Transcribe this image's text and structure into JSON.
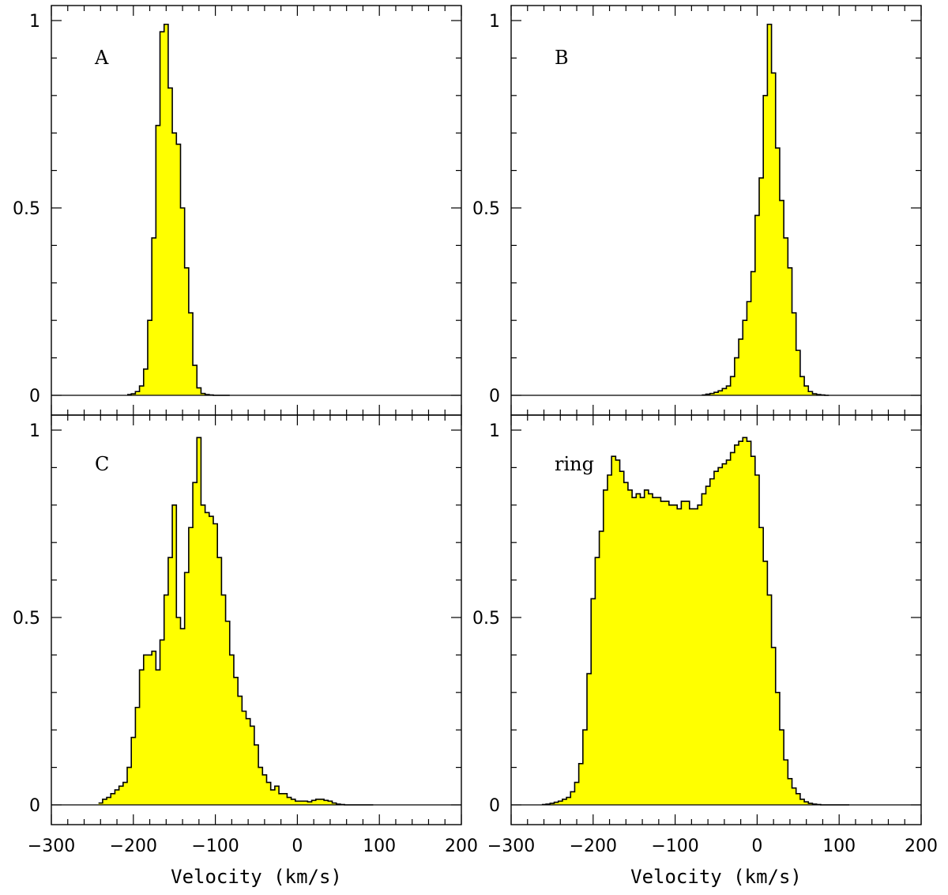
{
  "figure": {
    "colors": {
      "fill": "#ffff00",
      "line": "#000000",
      "background": "#ffffff"
    },
    "x_axis_title": "Velocity (km/s)"
  },
  "chart_data": [
    {
      "type": "area",
      "label": "A",
      "xlim": [
        -300,
        200
      ],
      "ylim": [
        0,
        1
      ],
      "x_ticks": [
        -300,
        -200,
        -100,
        0,
        100,
        200
      ],
      "y_ticks": [
        0,
        0.5,
        1
      ],
      "y_tick_labels": [
        "0",
        "0.5",
        "1"
      ],
      "bin_width": 5,
      "x": [
        -205,
        -200,
        -195,
        -190,
        -185,
        -180,
        -175,
        -170,
        -165,
        -160,
        -155,
        -150,
        -145,
        -140,
        -135,
        -130,
        -125,
        -120,
        -115,
        -110,
        -105,
        -100,
        -95,
        -90,
        -85
      ],
      "values": [
        0.002,
        0.004,
        0.01,
        0.025,
        0.07,
        0.2,
        0.42,
        0.72,
        0.97,
        0.99,
        0.82,
        0.7,
        0.67,
        0.5,
        0.34,
        0.22,
        0.08,
        0.02,
        0.005,
        0.002,
        0.001,
        0,
        0,
        0,
        0
      ]
    },
    {
      "type": "area",
      "label": "B",
      "xlim": [
        -300,
        200
      ],
      "ylim": [
        0,
        1
      ],
      "x_ticks": [
        -300,
        -200,
        -100,
        0,
        100,
        200
      ],
      "y_ticks": [
        0,
        0.5,
        1
      ],
      "y_tick_labels": [
        "0",
        "0.5",
        "1"
      ],
      "bin_width": 5,
      "x": [
        -65,
        -60,
        -55,
        -50,
        -45,
        -40,
        -35,
        -30,
        -25,
        -20,
        -15,
        -10,
        -5,
        0,
        5,
        10,
        15,
        20,
        25,
        30,
        35,
        40,
        45,
        50,
        55,
        60,
        65,
        70,
        75,
        80,
        85
      ],
      "values": [
        0.001,
        0.003,
        0.005,
        0.008,
        0.012,
        0.018,
        0.025,
        0.05,
        0.1,
        0.15,
        0.2,
        0.25,
        0.33,
        0.48,
        0.58,
        0.8,
        0.99,
        0.86,
        0.66,
        0.52,
        0.42,
        0.34,
        0.22,
        0.12,
        0.05,
        0.025,
        0.01,
        0.004,
        0.002,
        0.001,
        0
      ]
    },
    {
      "type": "area",
      "label": "C",
      "xlim": [
        -300,
        200
      ],
      "ylim": [
        0,
        1
      ],
      "x_ticks": [
        -300,
        -200,
        -100,
        0,
        100,
        200
      ],
      "y_ticks": [
        0,
        0.5,
        1
      ],
      "y_tick_labels": [
        "0",
        "0.5",
        "1"
      ],
      "bin_width": 5,
      "x": [
        -240,
        -235,
        -230,
        -225,
        -220,
        -215,
        -210,
        -205,
        -200,
        -195,
        -190,
        -185,
        -180,
        -175,
        -170,
        -165,
        -160,
        -155,
        -150,
        -145,
        -140,
        -135,
        -130,
        -125,
        -120,
        -115,
        -110,
        -105,
        -100,
        -95,
        -90,
        -85,
        -80,
        -75,
        -70,
        -65,
        -60,
        -55,
        -50,
        -45,
        -40,
        -35,
        -30,
        -25,
        -20,
        -15,
        -10,
        -5,
        0,
        5,
        10,
        15,
        20,
        25,
        30,
        35,
        40,
        45,
        50,
        55,
        60,
        65,
        70,
        75,
        80,
        85,
        90
      ],
      "values": [
        0.005,
        0.015,
        0.02,
        0.03,
        0.04,
        0.05,
        0.06,
        0.1,
        0.18,
        0.26,
        0.36,
        0.4,
        0.4,
        0.41,
        0.36,
        0.44,
        0.56,
        0.66,
        0.8,
        0.5,
        0.47,
        0.62,
        0.74,
        0.86,
        0.98,
        0.8,
        0.78,
        0.77,
        0.75,
        0.66,
        0.56,
        0.49,
        0.4,
        0.34,
        0.29,
        0.25,
        0.23,
        0.21,
        0.16,
        0.1,
        0.08,
        0.06,
        0.04,
        0.05,
        0.03,
        0.03,
        0.02,
        0.015,
        0.01,
        0.01,
        0.01,
        0.008,
        0.012,
        0.015,
        0.015,
        0.012,
        0.01,
        0.005,
        0.002,
        0.001,
        0,
        0,
        0,
        0,
        0,
        0,
        0
      ]
    },
    {
      "type": "area",
      "label": "ring",
      "xlim": [
        -300,
        200
      ],
      "ylim": [
        0,
        1
      ],
      "x_ticks": [
        -300,
        -200,
        -100,
        0,
        100,
        200
      ],
      "y_ticks": [
        0,
        0.5,
        1
      ],
      "y_tick_labels": [
        "0",
        "0.5",
        "1"
      ],
      "bin_width": 5,
      "x": [
        -260,
        -255,
        -250,
        -245,
        -240,
        -235,
        -230,
        -225,
        -220,
        -215,
        -210,
        -205,
        -200,
        -195,
        -190,
        -185,
        -180,
        -175,
        -170,
        -165,
        -160,
        -155,
        -150,
        -145,
        -140,
        -135,
        -130,
        -125,
        -120,
        -115,
        -110,
        -105,
        -100,
        -95,
        -90,
        -85,
        -80,
        -75,
        -70,
        -65,
        -60,
        -55,
        -50,
        -45,
        -40,
        -35,
        -30,
        -25,
        -20,
        -15,
        -10,
        -5,
        0,
        5,
        10,
        15,
        20,
        25,
        30,
        35,
        40,
        45,
        50,
        55,
        60,
        65,
        70,
        75,
        80,
        85,
        90,
        95,
        100,
        105,
        110
      ],
      "values": [
        0.001,
        0.002,
        0.004,
        0.007,
        0.01,
        0.015,
        0.02,
        0.035,
        0.06,
        0.11,
        0.2,
        0.35,
        0.55,
        0.66,
        0.73,
        0.84,
        0.88,
        0.93,
        0.92,
        0.89,
        0.86,
        0.84,
        0.82,
        0.83,
        0.82,
        0.84,
        0.83,
        0.82,
        0.82,
        0.81,
        0.81,
        0.8,
        0.8,
        0.79,
        0.81,
        0.81,
        0.79,
        0.79,
        0.8,
        0.83,
        0.85,
        0.87,
        0.89,
        0.9,
        0.91,
        0.92,
        0.94,
        0.96,
        0.97,
        0.98,
        0.97,
        0.93,
        0.88,
        0.74,
        0.65,
        0.56,
        0.42,
        0.3,
        0.2,
        0.12,
        0.07,
        0.045,
        0.03,
        0.015,
        0.008,
        0.004,
        0.002,
        0.001,
        0,
        0,
        0,
        0,
        0,
        0,
        0
      ]
    }
  ]
}
